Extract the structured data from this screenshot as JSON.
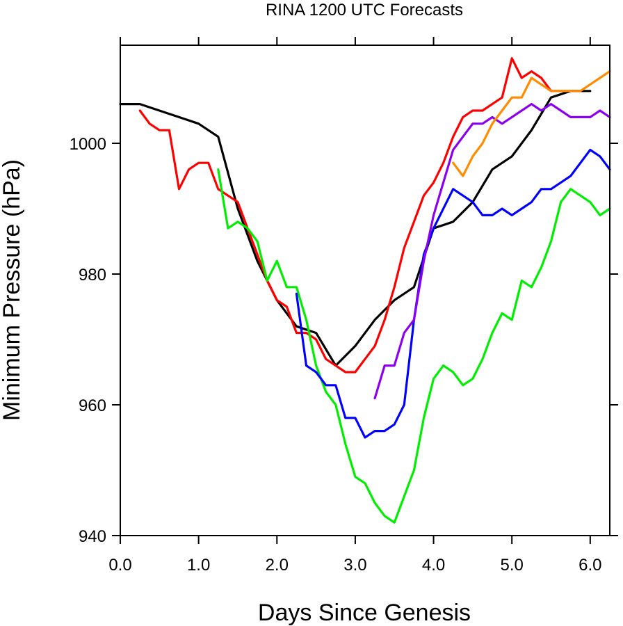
{
  "chart_data": {
    "type": "line",
    "title": "RINA 1200 UTC Forecasts",
    "xlabel": "Days Since Genesis",
    "ylabel": "Minimum Pressure (hPa)",
    "xlim": [
      0.0,
      6.25
    ],
    "ylim": [
      940,
      1015
    ],
    "x_ticks": [
      0,
      1,
      2,
      3,
      4,
      5,
      6
    ],
    "x_tick_labels": [
      "0.0",
      "1.0",
      "2.0",
      "3.0",
      "4.0",
      "5.0",
      "6.0"
    ],
    "y_ticks": [
      940,
      960,
      980,
      1000
    ],
    "y_tick_labels": [
      "940",
      "960",
      "980",
      "1000"
    ],
    "grid": false,
    "series": [
      {
        "color": "#000000",
        "points": [
          [
            0.0,
            1006
          ],
          [
            0.25,
            1006
          ],
          [
            0.5,
            1005
          ],
          [
            0.75,
            1004
          ],
          [
            1.0,
            1003
          ],
          [
            1.25,
            1001
          ],
          [
            1.5,
            990
          ],
          [
            1.75,
            982
          ],
          [
            2.0,
            976
          ],
          [
            2.25,
            972
          ],
          [
            2.5,
            971
          ],
          [
            2.75,
            966
          ],
          [
            3.0,
            969
          ],
          [
            3.25,
            973
          ],
          [
            3.5,
            976
          ],
          [
            3.75,
            978
          ],
          [
            4.0,
            987
          ],
          [
            4.25,
            988
          ],
          [
            4.5,
            991
          ],
          [
            4.75,
            996
          ],
          [
            5.0,
            998
          ],
          [
            5.25,
            1002
          ],
          [
            5.5,
            1007
          ],
          [
            5.75,
            1008
          ],
          [
            6.0,
            1008
          ]
        ]
      },
      {
        "color": "#ff0000",
        "points": [
          [
            0.25,
            1005
          ],
          [
            0.375,
            1003
          ],
          [
            0.5,
            1002
          ],
          [
            0.625,
            1002
          ],
          [
            0.75,
            993
          ],
          [
            0.875,
            996
          ],
          [
            1.0,
            997
          ],
          [
            1.125,
            997
          ],
          [
            1.25,
            993
          ],
          [
            1.375,
            992
          ],
          [
            1.5,
            991
          ],
          [
            1.625,
            987
          ],
          [
            1.75,
            983
          ],
          [
            1.875,
            979
          ],
          [
            2.0,
            976
          ],
          [
            2.125,
            975
          ],
          [
            2.25,
            971
          ],
          [
            2.375,
            971
          ],
          [
            2.5,
            970
          ],
          [
            2.625,
            967
          ],
          [
            2.75,
            966
          ],
          [
            2.875,
            965
          ],
          [
            3.0,
            965
          ],
          [
            3.125,
            967
          ],
          [
            3.25,
            969
          ],
          [
            3.375,
            973
          ],
          [
            3.5,
            978
          ],
          [
            3.625,
            984
          ],
          [
            3.75,
            988
          ],
          [
            3.875,
            992
          ],
          [
            4.0,
            994
          ],
          [
            4.125,
            997
          ],
          [
            4.25,
            1001
          ],
          [
            4.375,
            1004
          ],
          [
            4.5,
            1005
          ],
          [
            4.625,
            1005
          ],
          [
            4.75,
            1006
          ],
          [
            4.875,
            1007
          ],
          [
            5.0,
            1013
          ],
          [
            5.125,
            1010
          ],
          [
            5.25,
            1011
          ],
          [
            5.375,
            1010
          ],
          [
            5.5,
            1008
          ],
          [
            5.625,
            1008
          ],
          [
            5.75,
            1008
          ],
          [
            5.875,
            1008
          ]
        ]
      },
      {
        "color": "#00ee00",
        "points": [
          [
            1.25,
            996
          ],
          [
            1.375,
            987
          ],
          [
            1.5,
            988
          ],
          [
            1.625,
            987
          ],
          [
            1.75,
            985
          ],
          [
            1.875,
            979
          ],
          [
            2.0,
            982
          ],
          [
            2.125,
            978
          ],
          [
            2.25,
            978
          ],
          [
            2.375,
            973
          ],
          [
            2.5,
            966
          ],
          [
            2.625,
            962
          ],
          [
            2.75,
            960
          ],
          [
            2.875,
            954
          ],
          [
            3.0,
            949
          ],
          [
            3.125,
            948
          ],
          [
            3.25,
            945
          ],
          [
            3.375,
            943
          ],
          [
            3.5,
            942
          ],
          [
            3.625,
            946
          ],
          [
            3.75,
            950
          ],
          [
            3.875,
            958
          ],
          [
            4.0,
            964
          ],
          [
            4.125,
            966
          ],
          [
            4.25,
            965
          ],
          [
            4.375,
            963
          ],
          [
            4.5,
            964
          ],
          [
            4.625,
            967
          ],
          [
            4.75,
            971
          ],
          [
            4.875,
            974
          ],
          [
            5.0,
            973
          ],
          [
            5.125,
            979
          ],
          [
            5.25,
            978
          ],
          [
            5.375,
            981
          ],
          [
            5.5,
            985
          ],
          [
            5.625,
            991
          ],
          [
            5.75,
            993
          ],
          [
            5.875,
            992
          ],
          [
            6.0,
            991
          ],
          [
            6.125,
            989
          ],
          [
            6.25,
            990
          ]
        ]
      },
      {
        "color": "#0000ff",
        "points": [
          [
            2.25,
            977
          ],
          [
            2.375,
            966
          ],
          [
            2.5,
            965
          ],
          [
            2.625,
            963
          ],
          [
            2.75,
            963
          ],
          [
            2.875,
            958
          ],
          [
            3.0,
            958
          ],
          [
            3.125,
            955
          ],
          [
            3.25,
            956
          ],
          [
            3.375,
            956
          ],
          [
            3.5,
            957
          ],
          [
            3.625,
            960
          ],
          [
            3.75,
            973
          ],
          [
            3.875,
            983
          ],
          [
            4.0,
            987
          ],
          [
            4.125,
            990
          ],
          [
            4.25,
            993
          ],
          [
            4.375,
            992
          ],
          [
            4.5,
            991
          ],
          [
            4.625,
            989
          ],
          [
            4.75,
            989
          ],
          [
            4.875,
            990
          ],
          [
            5.0,
            989
          ],
          [
            5.125,
            990
          ],
          [
            5.25,
            991
          ],
          [
            5.375,
            993
          ],
          [
            5.5,
            993
          ],
          [
            5.625,
            994
          ],
          [
            5.75,
            995
          ],
          [
            5.875,
            997
          ],
          [
            6.0,
            999
          ],
          [
            6.125,
            998
          ],
          [
            6.25,
            996
          ]
        ]
      },
      {
        "color": "#8b00ee",
        "points": [
          [
            3.25,
            961
          ],
          [
            3.375,
            966
          ],
          [
            3.5,
            966
          ],
          [
            3.625,
            971
          ],
          [
            3.75,
            973
          ],
          [
            3.875,
            982
          ],
          [
            4.0,
            989
          ],
          [
            4.125,
            994
          ],
          [
            4.25,
            999
          ],
          [
            4.375,
            1001
          ],
          [
            4.5,
            1003
          ],
          [
            4.625,
            1003
          ],
          [
            4.75,
            1004
          ],
          [
            4.875,
            1003
          ],
          [
            5.0,
            1004
          ],
          [
            5.125,
            1005
          ],
          [
            5.25,
            1006
          ],
          [
            5.375,
            1005
          ],
          [
            5.5,
            1006
          ],
          [
            5.625,
            1005
          ],
          [
            5.75,
            1004
          ],
          [
            5.875,
            1004
          ],
          [
            6.0,
            1004
          ],
          [
            6.125,
            1005
          ],
          [
            6.25,
            1004
          ]
        ]
      },
      {
        "color": "#ff8c00",
        "points": [
          [
            4.25,
            997
          ],
          [
            4.375,
            995
          ],
          [
            4.5,
            998
          ],
          [
            4.625,
            1000
          ],
          [
            4.75,
            1003
          ],
          [
            4.875,
            1005
          ],
          [
            5.0,
            1007
          ],
          [
            5.125,
            1007
          ],
          [
            5.25,
            1010
          ],
          [
            5.375,
            1009
          ],
          [
            5.5,
            1008
          ],
          [
            5.625,
            1008
          ],
          [
            5.75,
            1008
          ],
          [
            5.875,
            1008
          ],
          [
            6.0,
            1009
          ],
          [
            6.125,
            1010
          ],
          [
            6.25,
            1011
          ]
        ]
      }
    ]
  }
}
